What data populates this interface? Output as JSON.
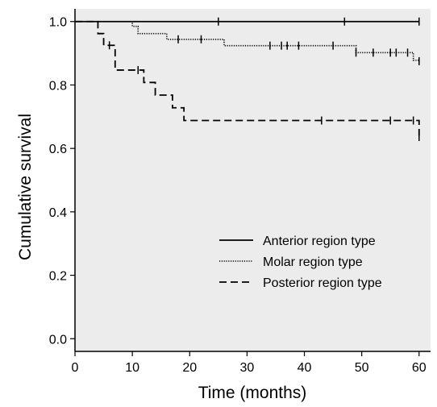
{
  "chart_data": {
    "type": "line",
    "subtype": "kaplan-meier step",
    "xlabel": "Time (months)",
    "ylabel": "Cumulative survival",
    "xlim": [
      0,
      62
    ],
    "ylim": [
      -0.04,
      1.04
    ],
    "x_ticks": [
      0,
      10,
      20,
      30,
      40,
      50,
      60
    ],
    "y_ticks": [
      0.0,
      0.2,
      0.4,
      0.6,
      0.8,
      1.0
    ],
    "y_tick_labels": [
      "0.0",
      "0.2",
      "0.4",
      "0.6",
      "0.8",
      "1.0"
    ],
    "grid": false,
    "plot_background": "#ececec",
    "legend_position": "center-right",
    "series": [
      {
        "name": "Anterior region type",
        "line_style": "solid",
        "steps": [
          [
            0,
            1.0
          ],
          [
            60,
            1.0
          ]
        ],
        "censored": [
          [
            25,
            1.0
          ],
          [
            47,
            1.0
          ],
          [
            60,
            1.0
          ]
        ]
      },
      {
        "name": "Molar region type",
        "line_style": "dotted",
        "steps": [
          [
            0,
            1.0
          ],
          [
            10,
            0.985
          ],
          [
            11,
            0.962
          ],
          [
            16,
            0.944
          ],
          [
            26,
            0.924
          ],
          [
            45,
            0.924
          ],
          [
            49,
            0.902
          ],
          [
            59,
            0.878
          ],
          [
            60,
            0.87
          ]
        ],
        "censored": [
          [
            18,
            0.944
          ],
          [
            22,
            0.944
          ],
          [
            34,
            0.924
          ],
          [
            36,
            0.924
          ],
          [
            37,
            0.924
          ],
          [
            39,
            0.924
          ],
          [
            45,
            0.924
          ],
          [
            49,
            0.902
          ],
          [
            52,
            0.902
          ],
          [
            55,
            0.902
          ],
          [
            56,
            0.902
          ],
          [
            58,
            0.902
          ],
          [
            60,
            0.875
          ]
        ]
      },
      {
        "name": "Posterior region type",
        "line_style": "dashed",
        "steps": [
          [
            0,
            1.0
          ],
          [
            4,
            0.962
          ],
          [
            5,
            0.925
          ],
          [
            7,
            0.847
          ],
          [
            12,
            0.808
          ],
          [
            14,
            0.768
          ],
          [
            17,
            0.728
          ],
          [
            19,
            0.688
          ],
          [
            59.5,
            0.688
          ],
          [
            60,
            0.64
          ]
        ],
        "censored": [
          [
            6,
            0.925
          ],
          [
            11,
            0.847
          ],
          [
            43,
            0.688
          ],
          [
            55,
            0.688
          ],
          [
            59,
            0.688
          ],
          [
            60,
            0.636
          ]
        ]
      }
    ]
  }
}
